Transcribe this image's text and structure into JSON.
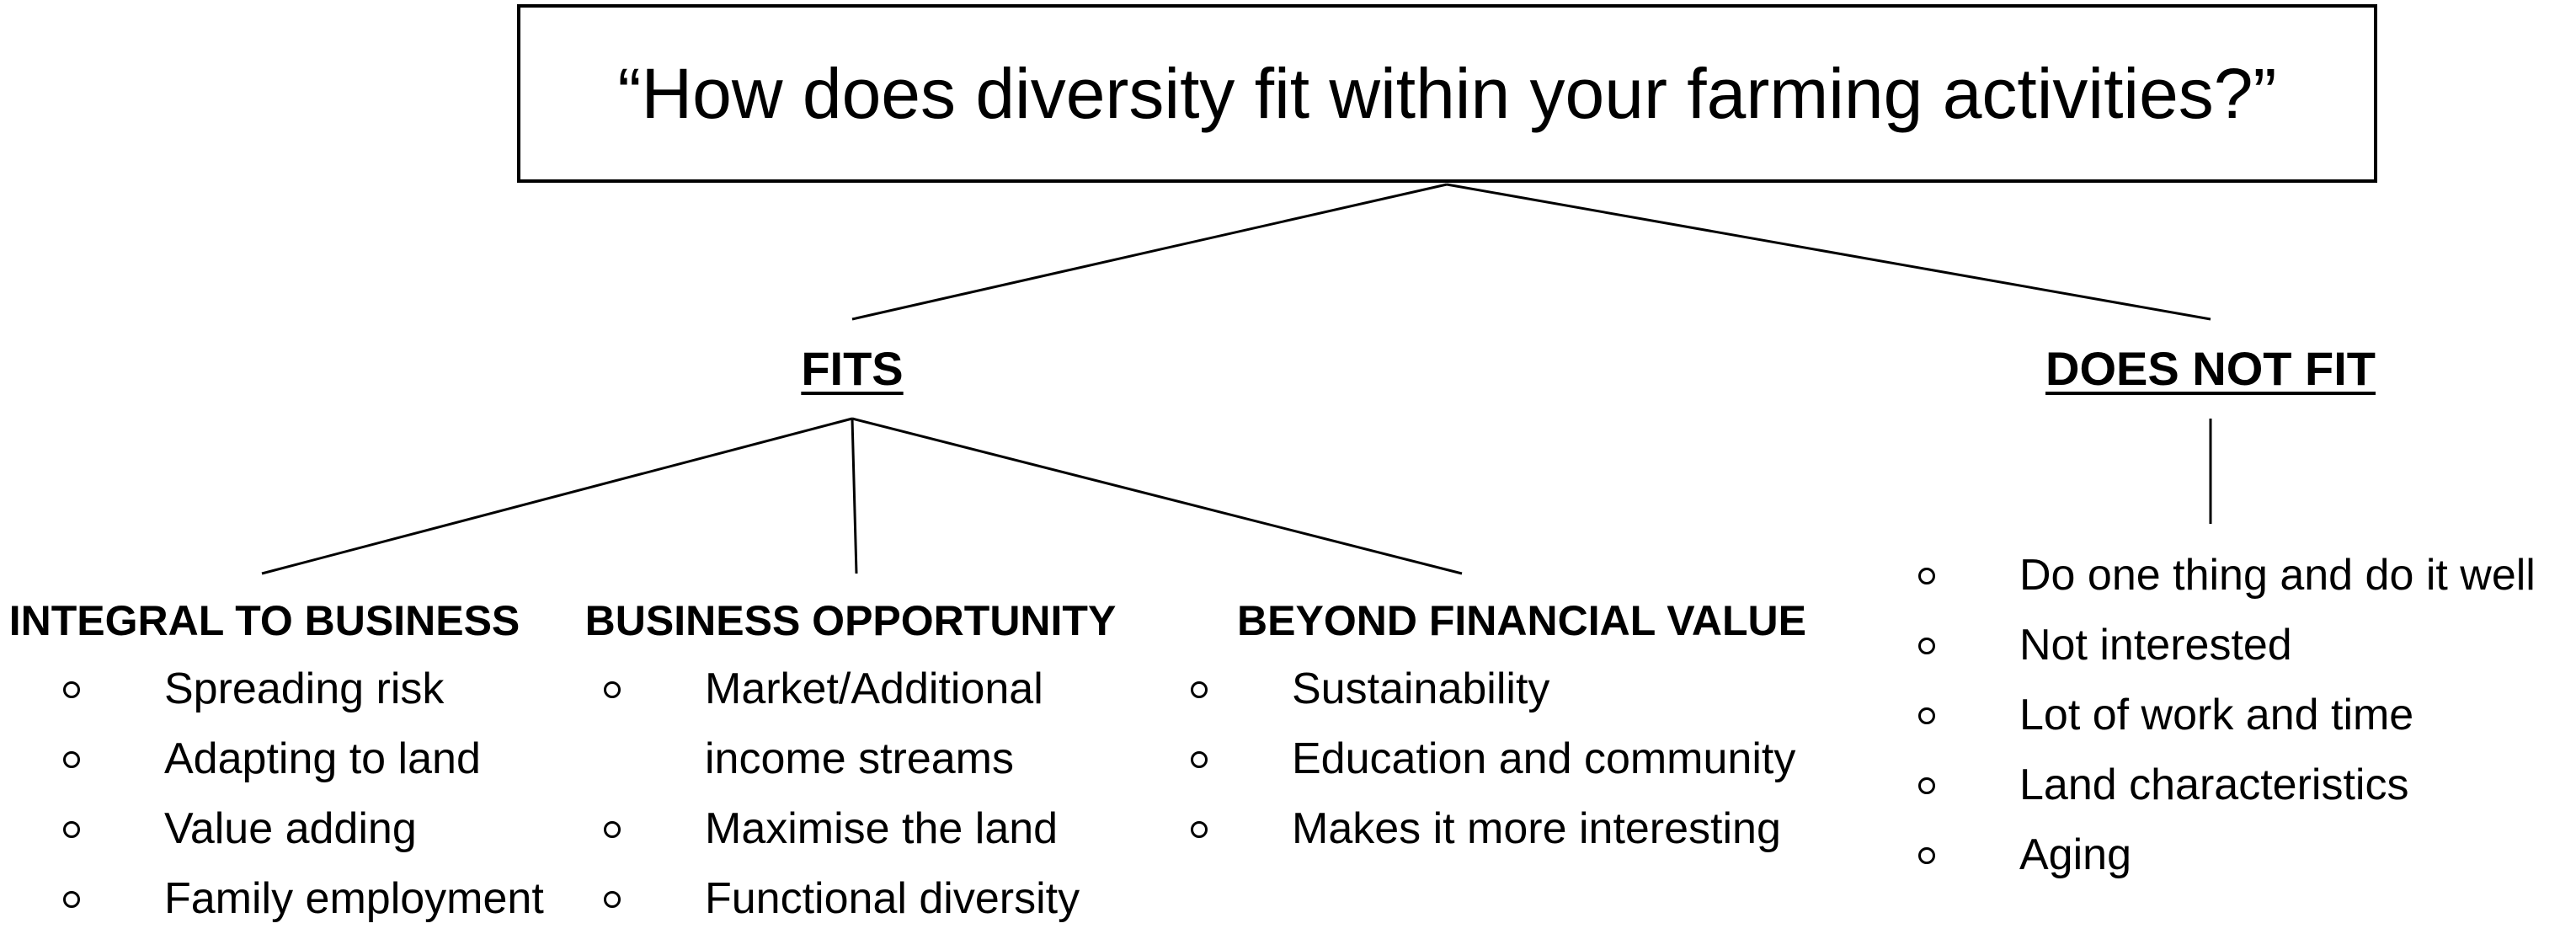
{
  "question": "“How does diversity fit within your farming activities?”",
  "branches": {
    "fits": {
      "label": "FITS",
      "categories": [
        {
          "title": "INTEGRAL TO BUSINESS",
          "items": [
            "Spreading risk",
            "Adapting to land",
            "Value adding",
            "Family employment"
          ]
        },
        {
          "title": "BUSINESS OPPORTUNITY",
          "items": [
            "Market/Additional income streams",
            "Maximise the land",
            "Functional diversity"
          ]
        },
        {
          "title": "BEYOND FINANCIAL VALUE",
          "items": [
            "Sustainability",
            "Education and community",
            "Makes it more interesting"
          ]
        }
      ]
    },
    "does_not_fit": {
      "label": "DOES NOT FIT",
      "items": [
        "Do one thing and do it well",
        "Not interested",
        "Lot of work and time",
        "Land characteristics",
        "Aging"
      ]
    }
  }
}
